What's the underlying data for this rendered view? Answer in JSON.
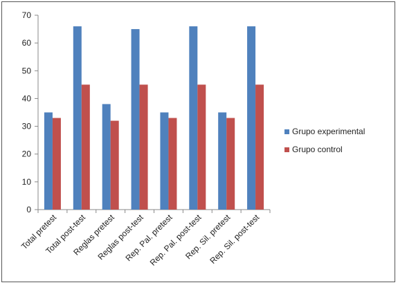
{
  "chart_data": {
    "type": "bar",
    "categories": [
      "Total pretest",
      "Total post-test",
      "Reglas pretest",
      "Reglas post-test",
      "Rep. Pal. pretest",
      "Rep. Pal. post-test",
      "Rep. Sil. pretest",
      "Rep. Sil. post-test"
    ],
    "series": [
      {
        "name": "Grupo experimental",
        "color": "#4F81BD",
        "values": [
          35,
          66,
          38,
          65,
          35,
          66,
          35,
          66
        ]
      },
      {
        "name": "Grupo control",
        "color": "#C0504D",
        "values": [
          33,
          45,
          32,
          45,
          33,
          45,
          33,
          45
        ]
      }
    ],
    "ylim": [
      0,
      70
    ],
    "yticks": [
      0,
      10,
      20,
      30,
      40,
      50,
      60,
      70
    ],
    "grid": false,
    "legend": "right",
    "title": "",
    "xlabel": "",
    "ylabel": ""
  }
}
